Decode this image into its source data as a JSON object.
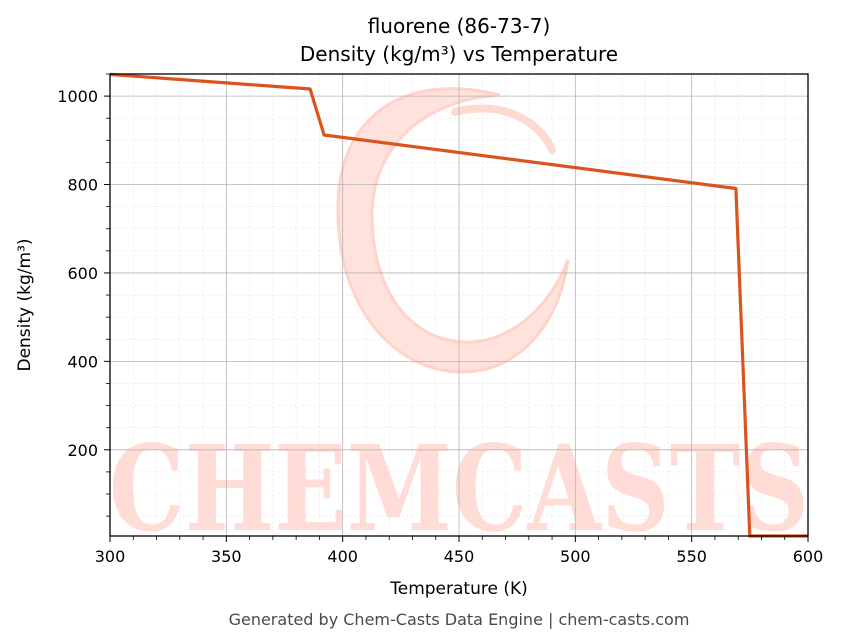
{
  "chart_data": {
    "type": "line",
    "title": "fluorene (86-73-7)",
    "subtitle": "Density (kg/m³) vs Temperature",
    "xlabel": "Temperature (K)",
    "ylabel": "Density (kg/m³)",
    "xlim": [
      300,
      600
    ],
    "ylim": [
      5,
      1050
    ],
    "xticks": [
      300,
      350,
      400,
      450,
      500,
      550,
      600
    ],
    "yticks": [
      200,
      400,
      600,
      800,
      1000
    ],
    "xtick_labels": [
      "300",
      "350",
      "400",
      "450",
      "500",
      "550",
      "600"
    ],
    "ytick_labels": [
      "200",
      "400",
      "600",
      "800",
      "1000"
    ],
    "grid": true,
    "line_color": "#d9541e",
    "x": [
      300,
      386,
      392,
      569,
      575,
      600
    ],
    "y": [
      1049,
      1016,
      912,
      791,
      5,
      5
    ]
  },
  "watermark": {
    "text": "CHEMCASTS",
    "color": "#ffdcd5"
  },
  "footer": {
    "text": "Generated by Chem-Casts Data Engine | chem-casts.com"
  }
}
